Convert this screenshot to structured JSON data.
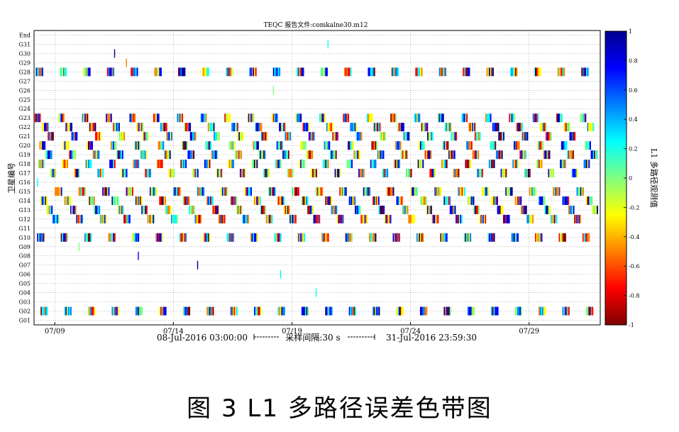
{
  "chart_data": {
    "type": "heatmap",
    "title": "TEQC 报告文件:comkalne30.m12",
    "ylabel": "卫星编号",
    "colorbar_label": "L1 多路径观测值",
    "colorbar_range": [
      -1,
      1
    ],
    "colorbar_ticks": [
      "1",
      "0.8",
      "0.6",
      "0.4",
      "0.2",
      "0",
      "-0.2",
      "-0.4",
      "-0.6",
      "-0.8",
      "-1"
    ],
    "colormap": [
      "#7f0000",
      "#ff0000",
      "#ff8000",
      "#ffff00",
      "#80ff80",
      "#00ffff",
      "#0080ff",
      "#0000ff",
      "#00008f"
    ],
    "x_ticks": [
      {
        "label": "07/09",
        "day": 9
      },
      {
        "label": "07/14",
        "day": 14
      },
      {
        "label": "07/19",
        "day": 19
      },
      {
        "label": "07/24",
        "day": 24
      },
      {
        "label": "07/29",
        "day": 29
      }
    ],
    "x_range_days": [
      8.125,
      32.0
    ],
    "start_label": "08-Jul-2016 03:00:00",
    "interval_label": "采样间隔:30 s",
    "end_label": "31-Jul-2016 23:59:30",
    "rows": [
      "End",
      "G31",
      "G30",
      "G29",
      "G28",
      "G27",
      "G26",
      "G25",
      "G24",
      "G23",
      "G22",
      "G21",
      "G20",
      "G19",
      "G18",
      "G17",
      "G16",
      "G15",
      "G14",
      "G13",
      "G12",
      "G11",
      "G10",
      "G09",
      "G08",
      "G07",
      "G06",
      "G05",
      "G04",
      "G03",
      "G02",
      "G01"
    ],
    "series": [
      {
        "sat": "G31",
        "start": 20.5,
        "period": 24,
        "count": 1,
        "dur": 0.02,
        "seed": 3
      },
      {
        "sat": "G30",
        "start": 11.5,
        "period": 24,
        "count": 1,
        "dur": 0.02,
        "seed": 5
      },
      {
        "sat": "G29",
        "start": 12.0,
        "period": 24,
        "count": 1,
        "dur": 0.02,
        "seed": 7
      },
      {
        "sat": "G28",
        "start": 8.2,
        "period": 1.0,
        "count": 24,
        "dur": 0.3,
        "seed": 11
      },
      {
        "sat": "G26",
        "start": 18.2,
        "period": 24,
        "count": 1,
        "dur": 0.02,
        "seed": 13
      },
      {
        "sat": "G23",
        "start": 8.15,
        "period": 1.0,
        "count": 24,
        "dur": 0.25,
        "seed": 17
      },
      {
        "sat": "G22",
        "start": 8.45,
        "period": 1.0,
        "count": 24,
        "dur": 0.28,
        "seed": 19
      },
      {
        "sat": "G21",
        "start": 8.7,
        "period": 1.0,
        "count": 23,
        "dur": 0.25,
        "seed": 23
      },
      {
        "sat": "G20",
        "start": 8.35,
        "period": 1.0,
        "count": 24,
        "dur": 0.25,
        "seed": 29
      },
      {
        "sat": "G19",
        "start": 8.6,
        "period": 1.0,
        "count": 24,
        "dur": 0.28,
        "seed": 31
      },
      {
        "sat": "G18",
        "start": 8.3,
        "period": 1.0,
        "count": 24,
        "dur": 0.25,
        "seed": 37
      },
      {
        "sat": "G17",
        "start": 8.8,
        "period": 1.0,
        "count": 23,
        "dur": 0.25,
        "seed": 41
      },
      {
        "sat": "G16",
        "start": 8.25,
        "period": 24,
        "count": 1,
        "dur": 0.02,
        "seed": 43
      },
      {
        "sat": "G15",
        "start": 9.0,
        "period": 1.0,
        "count": 23,
        "dur": 0.3,
        "seed": 47
      },
      {
        "sat": "G14",
        "start": 8.4,
        "period": 1.0,
        "count": 24,
        "dur": 0.28,
        "seed": 53
      },
      {
        "sat": "G13",
        "start": 8.65,
        "period": 1.0,
        "count": 24,
        "dur": 0.25,
        "seed": 59
      },
      {
        "sat": "G12",
        "start": 8.9,
        "period": 1.0,
        "count": 23,
        "dur": 0.28,
        "seed": 61
      },
      {
        "sat": "G10",
        "start": 8.25,
        "period": 1.0,
        "count": 24,
        "dur": 0.3,
        "seed": 67
      },
      {
        "sat": "G09",
        "start": 10.0,
        "period": 24,
        "count": 1,
        "dur": 0.02,
        "seed": 71
      },
      {
        "sat": "G08",
        "start": 12.5,
        "period": 24,
        "count": 1,
        "dur": 0.02,
        "seed": 73
      },
      {
        "sat": "G07",
        "start": 15.0,
        "period": 24,
        "count": 1,
        "dur": 0.02,
        "seed": 79
      },
      {
        "sat": "G06",
        "start": 18.5,
        "period": 24,
        "count": 1,
        "dur": 0.02,
        "seed": 83
      },
      {
        "sat": "G04",
        "start": 20.0,
        "period": 24,
        "count": 1,
        "dur": 0.02,
        "seed": 89
      },
      {
        "sat": "G02",
        "start": 8.4,
        "period": 1.0,
        "count": 24,
        "dur": 0.3,
        "seed": 97
      }
    ]
  },
  "caption": "图 3 L1 多路径误差色带图"
}
